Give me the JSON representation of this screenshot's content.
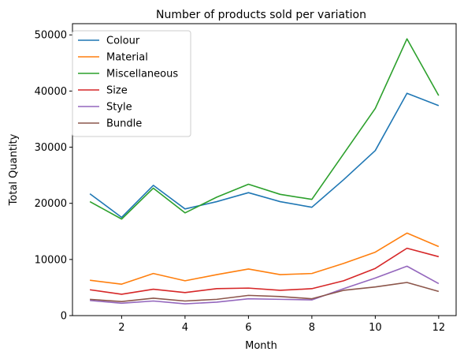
{
  "chart_data": {
    "type": "line",
    "title": "Number of products sold per variation",
    "xlabel": "Month",
    "ylabel": "Total Quantity",
    "x": [
      1,
      2,
      3,
      4,
      5,
      6,
      7,
      8,
      9,
      10,
      11,
      12
    ],
    "xlim": [
      0.45,
      12.55
    ],
    "ylim": [
      0,
      52000
    ],
    "xticks": [
      2,
      4,
      6,
      8,
      10,
      12
    ],
    "yticks": [
      0,
      10000,
      20000,
      30000,
      40000,
      50000
    ],
    "grid": false,
    "legend_position": "top-left",
    "series": [
      {
        "name": "Colour",
        "color": "#1f77b4",
        "values": [
          21700,
          17500,
          23200,
          19000,
          20300,
          21900,
          20300,
          19300,
          24200,
          29400,
          39600,
          37400
        ]
      },
      {
        "name": "Material",
        "color": "#ff7f0e",
        "values": [
          6300,
          5600,
          7500,
          6200,
          7300,
          8300,
          7300,
          7500,
          9300,
          11300,
          14700,
          12300
        ]
      },
      {
        "name": "Miscellaneous",
        "color": "#2ca02c",
        "values": [
          20300,
          17200,
          22700,
          18300,
          21100,
          23400,
          21600,
          20700,
          28800,
          36900,
          49300,
          39200
        ]
      },
      {
        "name": "Size",
        "color": "#d62728",
        "values": [
          4600,
          3800,
          4700,
          4100,
          4800,
          4900,
          4500,
          4800,
          6200,
          8400,
          12000,
          10500
        ]
      },
      {
        "name": "Style",
        "color": "#9467bd",
        "values": [
          2700,
          2200,
          2600,
          2100,
          2400,
          3000,
          2900,
          2800,
          4800,
          6700,
          8800,
          5700
        ]
      },
      {
        "name": "Bundle",
        "color": "#8c564b",
        "values": [
          2900,
          2500,
          3100,
          2600,
          2900,
          3600,
          3400,
          3000,
          4500,
          5100,
          5900,
          4300
        ]
      }
    ]
  }
}
